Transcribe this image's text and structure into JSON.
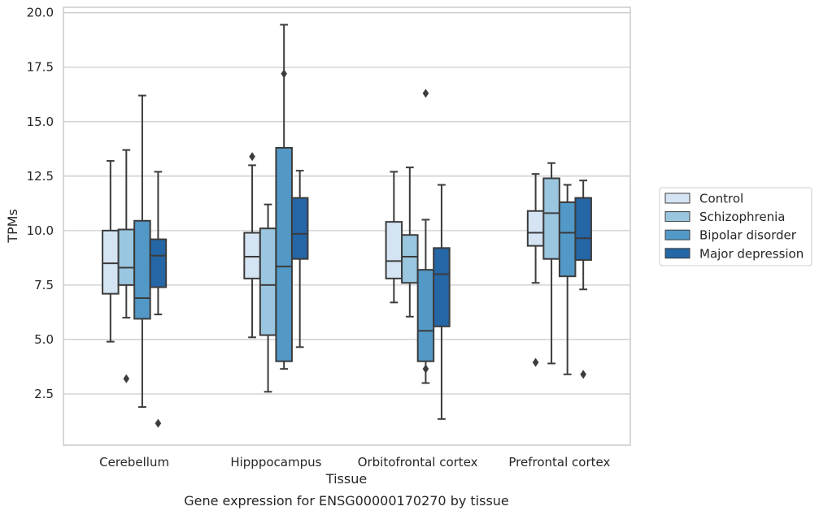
{
  "chart_data": {
    "type": "box",
    "title": "",
    "caption": "Gene expression for ENSG00000170270 by tissue",
    "xlabel": "Tissue",
    "ylabel": "TPMs",
    "ylim": [
      0.15,
      20.25
    ],
    "yticks": [
      2.5,
      5.0,
      7.5,
      10.0,
      12.5,
      15.0,
      17.5,
      20.0
    ],
    "ytick_labels": [
      "2.5",
      "5.0",
      "7.5",
      "10.0",
      "12.5",
      "15.0",
      "17.5",
      "20.0"
    ],
    "grid": "horizontal",
    "legend_position": "right",
    "categories": [
      "Cerebellum",
      "Hipppocampus",
      "Orbitofrontal cortex",
      "Prefrontal cortex"
    ],
    "series": [
      {
        "name": "Control",
        "color": "#d4e4f3",
        "boxes": [
          {
            "whislo": 4.9,
            "q1": 7.1,
            "med": 8.5,
            "q3": 10.0,
            "whishi": 13.2,
            "fliers": []
          },
          {
            "whislo": 5.1,
            "q1": 7.8,
            "med": 8.8,
            "q3": 9.9,
            "whishi": 13.0,
            "fliers": [
              13.4
            ]
          },
          {
            "whislo": 6.7,
            "q1": 7.8,
            "med": 8.6,
            "q3": 10.4,
            "whishi": 12.7,
            "fliers": []
          },
          {
            "whislo": 7.6,
            "q1": 9.3,
            "med": 9.9,
            "q3": 10.9,
            "whishi": 12.6,
            "fliers": [
              3.95
            ]
          }
        ]
      },
      {
        "name": "Schizophrenia",
        "color": "#9ac6df",
        "boxes": [
          {
            "whislo": 6.0,
            "q1": 7.5,
            "med": 8.3,
            "q3": 10.05,
            "whishi": 13.7,
            "fliers": [
              3.2
            ]
          },
          {
            "whislo": 2.6,
            "q1": 5.2,
            "med": 7.5,
            "q3": 10.1,
            "whishi": 11.2,
            "fliers": []
          },
          {
            "whislo": 6.05,
            "q1": 7.6,
            "med": 8.8,
            "q3": 9.8,
            "whishi": 12.9,
            "fliers": []
          },
          {
            "whislo": 3.9,
            "q1": 8.7,
            "med": 10.8,
            "q3": 12.4,
            "whishi": 13.1,
            "fliers": []
          }
        ]
      },
      {
        "name": "Bipolar disorder",
        "color": "#5299c7",
        "boxes": [
          {
            "whislo": 1.9,
            "q1": 5.95,
            "med": 6.9,
            "q3": 10.45,
            "whishi": 16.2,
            "fliers": []
          },
          {
            "whislo": 3.65,
            "q1": 4.0,
            "med": 8.35,
            "q3": 13.8,
            "whishi": 19.45,
            "fliers": [
              17.2
            ]
          },
          {
            "whislo": 3.0,
            "q1": 4.0,
            "med": 5.4,
            "q3": 8.2,
            "whishi": 10.5,
            "fliers": [
              3.65,
              16.3
            ]
          },
          {
            "whislo": 3.4,
            "q1": 7.9,
            "med": 9.9,
            "q3": 11.3,
            "whishi": 12.1,
            "fliers": []
          }
        ]
      },
      {
        "name": "Major depression",
        "color": "#2466a6",
        "boxes": [
          {
            "whislo": 6.15,
            "q1": 7.4,
            "med": 8.85,
            "q3": 9.6,
            "whishi": 12.7,
            "fliers": [
              1.15
            ]
          },
          {
            "whislo": 4.65,
            "q1": 8.7,
            "med": 9.85,
            "q3": 11.5,
            "whishi": 12.75,
            "fliers": []
          },
          {
            "whislo": 1.35,
            "q1": 5.6,
            "med": 8.0,
            "q3": 9.2,
            "whishi": 12.1,
            "fliers": []
          },
          {
            "whislo": 7.3,
            "q1": 8.65,
            "med": 9.65,
            "q3": 11.5,
            "whishi": 12.3,
            "fliers": [
              3.4
            ]
          }
        ]
      }
    ]
  }
}
